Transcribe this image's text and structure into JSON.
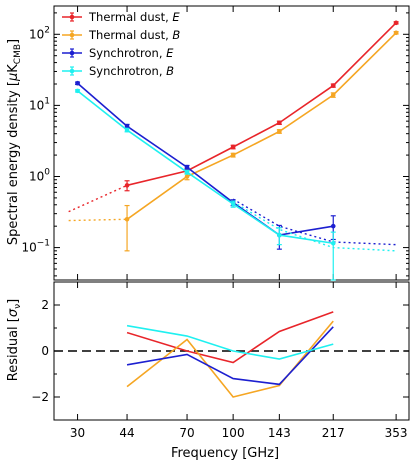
{
  "chart_data": [
    {
      "type": "line",
      "panel": "main",
      "ylabel_text": "Spectral energy density [",
      "ylabel_unit_mu": "μ",
      "ylabel_unit_K": "K",
      "ylabel_unit_sub": "CMB",
      "ylabel_close": "]",
      "yscale": "log",
      "ylim": [
        0.035,
        250
      ],
      "yticks": [
        {
          "base": "10",
          "exp": "−1",
          "value": 0.1
        },
        {
          "base": "10",
          "exp": "0",
          "value": 1
        },
        {
          "base": "10",
          "exp": "1",
          "value": 10
        },
        {
          "base": "10",
          "exp": "2",
          "value": 100
        }
      ],
      "legend_position": "top-left",
      "series": [
        {
          "name": "Thermal dust, E",
          "name_main": "Thermal dust, ",
          "name_italic": "E",
          "color": "#e8252a",
          "x": [
            44,
            70,
            100,
            143,
            217,
            353
          ],
          "values": [
            0.75,
            1.2,
            2.6,
            5.7,
            19,
            145
          ],
          "err_low": [
            0.12,
            0.1,
            0.15,
            0.3,
            1,
            5
          ],
          "err_high": [
            0.12,
            0.1,
            0.15,
            0.3,
            1,
            5
          ],
          "extrapolation": {
            "x": [
              28,
              44
            ],
            "values": [
              0.32,
              0.75
            ]
          }
        },
        {
          "name": "Thermal dust, B",
          "name_main": "Thermal dust, ",
          "name_italic": "B",
          "color": "#f5a623",
          "x": [
            44,
            70,
            100,
            143,
            217,
            353
          ],
          "values": [
            0.25,
            1.0,
            2.0,
            4.3,
            14,
            105
          ],
          "err_low": [
            0.16,
            0.1,
            0.12,
            0.25,
            1,
            4
          ],
          "err_high": [
            0.14,
            0.1,
            0.12,
            0.25,
            1,
            4
          ],
          "extrapolation": {
            "x": [
              28,
              44
            ],
            "values": [
              0.24,
              0.25
            ]
          }
        },
        {
          "name": "Synchrotron, E",
          "name_main": "Synchrotron, ",
          "name_italic": "E",
          "color": "#1c1fd0",
          "x": [
            30,
            44,
            70,
            100,
            143,
            217
          ],
          "values": [
            20.5,
            5.1,
            1.35,
            0.43,
            0.15,
            0.2
          ],
          "err_low": [
            0.8,
            0.3,
            0.08,
            0.04,
            0.055,
            0.07
          ],
          "err_high": [
            0.8,
            0.3,
            0.08,
            0.04,
            0.055,
            0.08
          ],
          "extrapolation": {
            "x": [
              100,
              143,
              217,
              353
            ],
            "values": [
              0.48,
              0.2,
              0.12,
              0.11
            ]
          }
        },
        {
          "name": "Synchrotron, B",
          "name_main": "Synchrotron, ",
          "name_italic": "B",
          "color": "#1ff0f0",
          "x": [
            30,
            44,
            70,
            100,
            143,
            217
          ],
          "values": [
            16,
            4.5,
            1.15,
            0.41,
            0.15,
            0.115
          ],
          "err_low": [
            0.6,
            0.25,
            0.07,
            0.04,
            0.04,
            0.085
          ],
          "err_high": [
            0.6,
            0.25,
            0.07,
            0.04,
            0.04,
            0.05
          ],
          "extrapolation": {
            "x": [
              100,
              143,
              217,
              353
            ],
            "values": [
              0.44,
              0.18,
              0.1,
              0.09
            ]
          }
        }
      ]
    },
    {
      "type": "line",
      "panel": "residual",
      "ylabel_text": "Residual [",
      "ylabel_sigma": "σ",
      "ylabel_sub": "ν",
      "ylabel_close": "]",
      "xlabel": "Frequency [GHz]",
      "xscale": "log",
      "xlim": [
        25,
        390
      ],
      "xticks": [
        30,
        44,
        70,
        100,
        143,
        217,
        353
      ],
      "xtick_labels": [
        "30",
        "44",
        "70",
        "100",
        "143",
        "217",
        "353"
      ],
      "ylim": [
        -3,
        3
      ],
      "yticks": [
        -2,
        0,
        2
      ],
      "ytick_labels": [
        "−2",
        "0",
        "2"
      ],
      "zero_line": "dashed",
      "series": [
        {
          "name": "Thermal dust, E",
          "color": "#e8252a",
          "x": [
            44,
            70,
            100,
            143,
            217
          ],
          "values": [
            0.8,
            0.0,
            -0.5,
            0.85,
            1.7
          ]
        },
        {
          "name": "Thermal dust, B",
          "color": "#f5a623",
          "x": [
            44,
            70,
            100,
            143,
            217
          ],
          "values": [
            -1.55,
            0.5,
            -2.0,
            -1.5,
            1.3
          ]
        },
        {
          "name": "Synchrotron, E",
          "color": "#1c1fd0",
          "x": [
            44,
            70,
            100,
            143,
            217
          ],
          "values": [
            -0.6,
            -0.15,
            -1.2,
            -1.45,
            1.05
          ]
        },
        {
          "name": "Synchrotron, B",
          "color": "#1ff0f0",
          "x": [
            44,
            70,
            100,
            143,
            217
          ],
          "values": [
            1.1,
            0.65,
            0.0,
            -0.35,
            0.3
          ]
        }
      ]
    }
  ]
}
